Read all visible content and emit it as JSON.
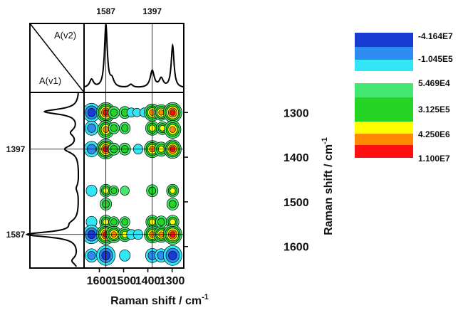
{
  "chart_data": {
    "type": "heatmap",
    "subtype": "2D correlation contour map (synchronous)",
    "xlabel": "Raman shift / cm",
    "ylabel": "Raman shift / cm",
    "unit_superscript": "-1",
    "x_ticks": [
      "1600",
      "1500",
      "1400",
      "1300"
    ],
    "y_ticks": [
      "1300",
      "1400",
      "1500",
      "1600"
    ],
    "x_range": [
      1660,
      1255
    ],
    "y_range": [
      1255,
      1645
    ],
    "grid": true,
    "top_markers": [
      "1587",
      "1397"
    ],
    "left_markers": [
      "1397",
      "1587"
    ],
    "corner_labels": [
      "A(v2)",
      "A(v1)"
    ],
    "legend_position": "right",
    "legend": [
      {
        "label": "-4.164E7",
        "color": "#1a3ad4"
      },
      {
        "label": "-1.045E5",
        "color": "#2e8bf0"
      },
      {
        "label": "",
        "color": "#33e6f5"
      },
      {
        "label": "5.469E4",
        "color": "#44e870"
      },
      {
        "label": "3.125E5",
        "color": "#26d426"
      },
      {
        "label": "",
        "color": "#ffff00"
      },
      {
        "label": "4.250E6",
        "color": "#ff8a00"
      },
      {
        "label": "1.100E7",
        "color": "#ff1010"
      }
    ],
    "spectrum_peaks": [
      {
        "position": 1632,
        "intensity": 0.13
      },
      {
        "position": 1573,
        "intensity": 1.0
      },
      {
        "position": 1548,
        "intensity": 0.12
      },
      {
        "position": 1470,
        "intensity": 0.05
      },
      {
        "position": 1382,
        "intensity": 0.27
      },
      {
        "position": 1345,
        "intensity": 0.14
      },
      {
        "position": 1298,
        "intensity": 0.67
      }
    ],
    "cross_peaks": [
      {
        "x": 1632,
        "y": 1300,
        "sign": "neg",
        "level": 0.9
      },
      {
        "x": 1573,
        "y": 1300,
        "sign": "pos",
        "level": 1.0
      },
      {
        "x": 1540,
        "y": 1300,
        "sign": "pos",
        "level": 0.45
      },
      {
        "x": 1495,
        "y": 1300,
        "sign": "pos",
        "level": 0.45
      },
      {
        "x": 1468,
        "y": 1300,
        "sign": "neg",
        "level": 0.25
      },
      {
        "x": 1445,
        "y": 1300,
        "sign": "neg",
        "level": 0.2
      },
      {
        "x": 1415,
        "y": 1300,
        "sign": "neg",
        "level": 0.25
      },
      {
        "x": 1382,
        "y": 1300,
        "sign": "pos",
        "level": 0.8
      },
      {
        "x": 1345,
        "y": 1300,
        "sign": "pos",
        "level": 0.7
      },
      {
        "x": 1298,
        "y": 1300,
        "sign": "pos",
        "level": 1.0
      },
      {
        "x": 1632,
        "y": 1335,
        "sign": "neg",
        "level": 0.6
      },
      {
        "x": 1573,
        "y": 1338,
        "sign": "pos",
        "level": 0.85
      },
      {
        "x": 1540,
        "y": 1335,
        "sign": "pos",
        "level": 0.4
      },
      {
        "x": 1495,
        "y": 1335,
        "sign": "pos",
        "level": 0.4
      },
      {
        "x": 1382,
        "y": 1335,
        "sign": "pos",
        "level": 0.6
      },
      {
        "x": 1340,
        "y": 1335,
        "sign": "pos",
        "level": 0.5
      },
      {
        "x": 1298,
        "y": 1338,
        "sign": "pos",
        "level": 0.85
      },
      {
        "x": 1632,
        "y": 1382,
        "sign": "neg",
        "level": 0.7
      },
      {
        "x": 1573,
        "y": 1382,
        "sign": "pos",
        "level": 1.0
      },
      {
        "x": 1540,
        "y": 1382,
        "sign": "pos",
        "level": 0.45
      },
      {
        "x": 1495,
        "y": 1382,
        "sign": "pos",
        "level": 0.45
      },
      {
        "x": 1440,
        "y": 1382,
        "sign": "neg",
        "level": 0.3
      },
      {
        "x": 1382,
        "y": 1382,
        "sign": "pos",
        "level": 0.8
      },
      {
        "x": 1345,
        "y": 1382,
        "sign": "pos",
        "level": 0.6
      },
      {
        "x": 1298,
        "y": 1382,
        "sign": "pos",
        "level": 0.9
      },
      {
        "x": 1632,
        "y": 1475,
        "sign": "neg",
        "level": 0.4
      },
      {
        "x": 1573,
        "y": 1475,
        "sign": "pos",
        "level": 0.5
      },
      {
        "x": 1540,
        "y": 1475,
        "sign": "pos",
        "level": 0.3
      },
      {
        "x": 1495,
        "y": 1475,
        "sign": "pos",
        "level": 0.25
      },
      {
        "x": 1382,
        "y": 1475,
        "sign": "pos",
        "level": 0.45
      },
      {
        "x": 1298,
        "y": 1475,
        "sign": "pos",
        "level": 0.5
      },
      {
        "x": 1573,
        "y": 1505,
        "sign": "pos",
        "level": 0.45
      },
      {
        "x": 1298,
        "y": 1505,
        "sign": "pos",
        "level": 0.45
      },
      {
        "x": 1632,
        "y": 1545,
        "sign": "neg",
        "level": 0.4
      },
      {
        "x": 1573,
        "y": 1545,
        "sign": "pos",
        "level": 0.55
      },
      {
        "x": 1540,
        "y": 1545,
        "sign": "pos",
        "level": 0.35
      },
      {
        "x": 1495,
        "y": 1545,
        "sign": "pos",
        "level": 0.35
      },
      {
        "x": 1382,
        "y": 1545,
        "sign": "pos",
        "level": 0.55
      },
      {
        "x": 1345,
        "y": 1545,
        "sign": "pos",
        "level": 0.45
      },
      {
        "x": 1298,
        "y": 1545,
        "sign": "pos",
        "level": 0.55
      },
      {
        "x": 1632,
        "y": 1573,
        "sign": "neg",
        "level": 0.9
      },
      {
        "x": 1573,
        "y": 1573,
        "sign": "pos",
        "level": 1.0
      },
      {
        "x": 1540,
        "y": 1573,
        "sign": "pos",
        "level": 0.75
      },
      {
        "x": 1495,
        "y": 1573,
        "sign": "pos",
        "level": 0.6
      },
      {
        "x": 1468,
        "y": 1573,
        "sign": "neg",
        "level": 0.3
      },
      {
        "x": 1440,
        "y": 1573,
        "sign": "neg",
        "level": 0.3
      },
      {
        "x": 1382,
        "y": 1573,
        "sign": "pos",
        "level": 0.8
      },
      {
        "x": 1345,
        "y": 1573,
        "sign": "pos",
        "level": 0.7
      },
      {
        "x": 1298,
        "y": 1573,
        "sign": "pos",
        "level": 1.0
      },
      {
        "x": 1632,
        "y": 1620,
        "sign": "neg",
        "level": 0.55
      },
      {
        "x": 1573,
        "y": 1620,
        "sign": "neg",
        "level": 1.0
      },
      {
        "x": 1495,
        "y": 1620,
        "sign": "neg",
        "level": 0.4
      },
      {
        "x": 1382,
        "y": 1620,
        "sign": "neg",
        "level": 0.6
      },
      {
        "x": 1345,
        "y": 1620,
        "sign": "neg",
        "level": 0.55
      },
      {
        "x": 1298,
        "y": 1620,
        "sign": "neg",
        "level": 1.0
      }
    ]
  }
}
